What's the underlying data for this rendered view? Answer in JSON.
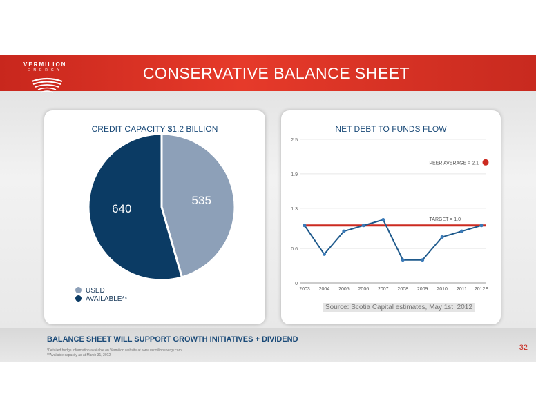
{
  "header": {
    "title": "CONSERVATIVE BALANCE SHEET",
    "logo_line1": "VERMILION",
    "logo_line2": "ENERGY"
  },
  "left_panel": {
    "title": "CREDIT CAPACITY $1.2 BILLION",
    "legend": [
      {
        "label": "USED",
        "color": "#8da0b8"
      },
      {
        "label": "AVAILABLE**",
        "color": "#0b3b64"
      }
    ]
  },
  "right_panel": {
    "title": "NET DEBT TO FUNDS FLOW",
    "peer_label": "PEER AVERAGE = 2.1",
    "target_label": "TARGET = 1.0",
    "source": "Source: Scotia Capital estimates, May 1st, 2012"
  },
  "footer": {
    "headline": "BALANCE SHEET WILL SUPPORT GROWTH INITIATIVES + DIVIDEND",
    "note1": "*Detailed hedge information available on Vermilion website at www.vermilionenergy.com",
    "note2": "**Available capacity as at March 31, 2012",
    "page": "32"
  },
  "chart_data": [
    {
      "type": "pie",
      "title": "CREDIT CAPACITY $1.2 BILLION",
      "categories": [
        "USED",
        "AVAILABLE**"
      ],
      "values": [
        535,
        640
      ],
      "colors": [
        "#8da0b8",
        "#0b3b64"
      ]
    },
    {
      "type": "line",
      "title": "NET DEBT TO FUNDS FLOW",
      "x": [
        "2003",
        "2004",
        "2005",
        "2006",
        "2007",
        "2008",
        "2009",
        "2010",
        "2011",
        "2012E"
      ],
      "series": [
        {
          "values": [
            1.0,
            0.5,
            0.9,
            1.0,
            1.1,
            0.4,
            0.4,
            0.8,
            0.9,
            1.0
          ],
          "color": "#1f5a8c"
        }
      ],
      "yticks": [
        "0",
        "0.6",
        "1.3",
        "1.9",
        "2.5"
      ],
      "ylim": [
        0,
        2.5
      ],
      "reference_lines": [
        {
          "label": "TARGET = 1.0",
          "value": 1.0,
          "color": "#cc2a20"
        }
      ],
      "peer_average": {
        "label": "PEER AVERAGE = 2.1",
        "value": 2.1,
        "color": "#cc2a20"
      },
      "grid": true
    }
  ]
}
